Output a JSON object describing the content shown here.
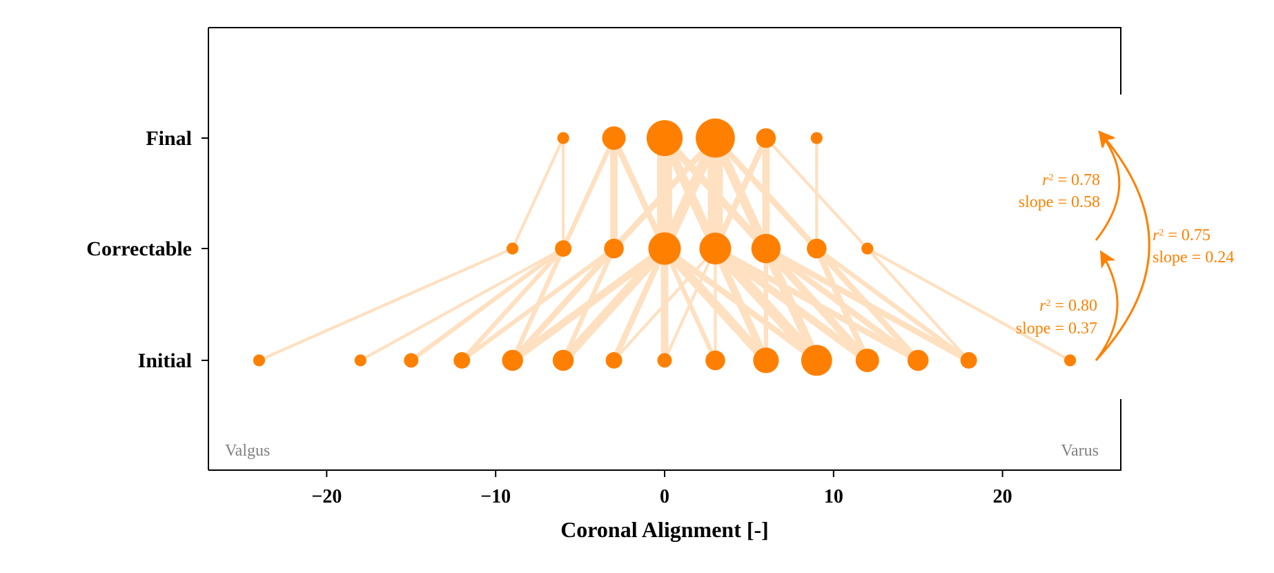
{
  "chart_data": {
    "type": "scatter",
    "title": "",
    "xlabel": "Coronal Alignment [-]",
    "ylabel": "",
    "xlim": [
      -27,
      27
    ],
    "x_ticks": [
      -20,
      -10,
      0,
      10,
      20
    ],
    "x_tick_labels": [
      "−20",
      "−10",
      "0",
      "10",
      "20"
    ],
    "rows": [
      "Initial",
      "Correctable",
      "Final"
    ],
    "grid": false,
    "colors": {
      "node": "#ff8000",
      "link": "#ffe0c0",
      "annotation": "#ff8000",
      "note": "#808080"
    },
    "nodes": {
      "Initial": [
        {
          "x": -24,
          "size": 1
        },
        {
          "x": -18,
          "size": 1
        },
        {
          "x": -15,
          "size": 2
        },
        {
          "x": -12,
          "size": 3
        },
        {
          "x": -9,
          "size": 6
        },
        {
          "x": -6,
          "size": 6
        },
        {
          "x": -3,
          "size": 3
        },
        {
          "x": 0,
          "size": 2
        },
        {
          "x": 3,
          "size": 5
        },
        {
          "x": 6,
          "size": 10
        },
        {
          "x": 9,
          "size": 16
        },
        {
          "x": 12,
          "size": 8
        },
        {
          "x": 15,
          "size": 6
        },
        {
          "x": 18,
          "size": 3
        },
        {
          "x": 24,
          "size": 1
        }
      ],
      "Correctable": [
        {
          "x": -9,
          "size": 1
        },
        {
          "x": -6,
          "size": 3
        },
        {
          "x": -3,
          "size": 5
        },
        {
          "x": 0,
          "size": 18
        },
        {
          "x": 3,
          "size": 17
        },
        {
          "x": 6,
          "size": 14
        },
        {
          "x": 9,
          "size": 5
        },
        {
          "x": 12,
          "size": 1
        }
      ],
      "Final": [
        {
          "x": -6,
          "size": 1
        },
        {
          "x": -3,
          "size": 8
        },
        {
          "x": 0,
          "size": 23
        },
        {
          "x": 3,
          "size": 28
        },
        {
          "x": 6,
          "size": 5
        },
        {
          "x": 9,
          "size": 1
        }
      ]
    },
    "links_initial_to_correctable": [
      {
        "from": -24,
        "to": -9,
        "w": 1
      },
      {
        "from": -18,
        "to": -6,
        "w": 1
      },
      {
        "from": -15,
        "to": -6,
        "w": 2
      },
      {
        "from": -12,
        "to": -6,
        "w": 2
      },
      {
        "from": -12,
        "to": -3,
        "w": 2
      },
      {
        "from": -9,
        "to": -6,
        "w": 2
      },
      {
        "from": -9,
        "to": -3,
        "w": 3
      },
      {
        "from": -9,
        "to": 0,
        "w": 4
      },
      {
        "from": -6,
        "to": -3,
        "w": 2
      },
      {
        "from": -6,
        "to": 0,
        "w": 5
      },
      {
        "from": -3,
        "to": 0,
        "w": 3
      },
      {
        "from": -3,
        "to": 3,
        "w": 1
      },
      {
        "from": 0,
        "to": 0,
        "w": 4
      },
      {
        "from": 0,
        "to": 3,
        "w": 1
      },
      {
        "from": 3,
        "to": 0,
        "w": 2
      },
      {
        "from": 3,
        "to": 3,
        "w": 1
      },
      {
        "from": 6,
        "to": 0,
        "w": 5
      },
      {
        "from": 6,
        "to": 3,
        "w": 4
      },
      {
        "from": 6,
        "to": 6,
        "w": 2
      },
      {
        "from": 9,
        "to": 0,
        "w": 3
      },
      {
        "from": 9,
        "to": 3,
        "w": 6
      },
      {
        "from": 9,
        "to": 6,
        "w": 5
      },
      {
        "from": 12,
        "to": 3,
        "w": 4
      },
      {
        "from": 12,
        "to": 6,
        "w": 4
      },
      {
        "from": 12,
        "to": 9,
        "w": 3
      },
      {
        "from": 15,
        "to": 3,
        "w": 3
      },
      {
        "from": 15,
        "to": 6,
        "w": 3
      },
      {
        "from": 15,
        "to": 9,
        "w": 3
      },
      {
        "from": 18,
        "to": 6,
        "w": 3
      },
      {
        "from": 18,
        "to": 9,
        "w": 2
      },
      {
        "from": 18,
        "to": 12,
        "w": 1
      },
      {
        "from": 24,
        "to": 12,
        "w": 1
      }
    ],
    "links_correctable_to_final": [
      {
        "from": -9,
        "to": -6,
        "w": 1
      },
      {
        "from": -6,
        "to": -6,
        "w": 1
      },
      {
        "from": -6,
        "to": -3,
        "w": 2
      },
      {
        "from": -3,
        "to": -3,
        "w": 4
      },
      {
        "from": -3,
        "to": 3,
        "w": 3
      },
      {
        "from": 0,
        "to": -3,
        "w": 3
      },
      {
        "from": 0,
        "to": 0,
        "w": 9
      },
      {
        "from": 0,
        "to": 3,
        "w": 6
      },
      {
        "from": 3,
        "to": 0,
        "w": 5
      },
      {
        "from": 3,
        "to": 3,
        "w": 9
      },
      {
        "from": 3,
        "to": 6,
        "w": 3
      },
      {
        "from": 6,
        "to": 0,
        "w": 4
      },
      {
        "from": 6,
        "to": 3,
        "w": 5
      },
      {
        "from": 6,
        "to": 6,
        "w": 4
      },
      {
        "from": 9,
        "to": 3,
        "w": 3
      },
      {
        "from": 9,
        "to": 9,
        "w": 1
      },
      {
        "from": 12,
        "to": 6,
        "w": 1
      }
    ],
    "annotations": [
      {
        "id": "initial-correctable",
        "r2": "0.80",
        "slope": "0.37"
      },
      {
        "id": "correctable-final",
        "r2": "0.78",
        "slope": "0.58"
      },
      {
        "id": "initial-final",
        "r2": "0.75",
        "slope": "0.24"
      }
    ],
    "corner_notes": {
      "left": "Valgus",
      "right": "Varus"
    }
  }
}
